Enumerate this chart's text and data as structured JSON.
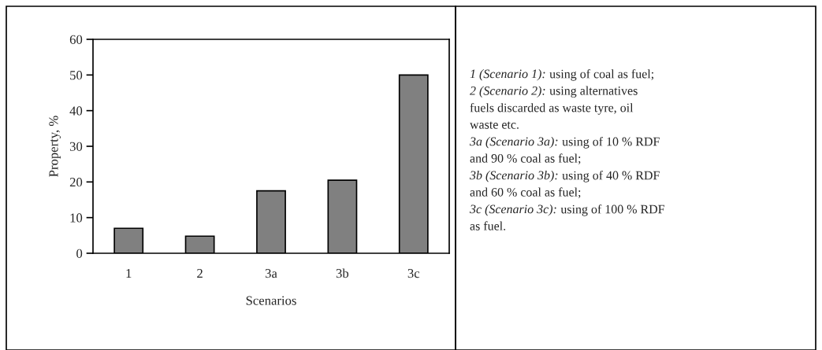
{
  "chart_data": {
    "type": "bar",
    "xlabel": "Scenarios",
    "ylabel": "Property, %",
    "categories": [
      "1",
      "2",
      "3a",
      "3b",
      "3c"
    ],
    "values": [
      7,
      4.8,
      17.5,
      20.5,
      50
    ],
    "color": "#808080",
    "ylim": [
      0,
      60
    ],
    "yticks": [
      0,
      10,
      20,
      30,
      40,
      50,
      60
    ],
    "grid": false,
    "annotations": [
      "1 (Scenario 1): using of coal as fuel;",
      "2 (Scenario 2): using alternatives\nfuels discarded as waste tyre, oil\nwaste etc.",
      "3a (Scenario 3a): using of 10 % RDF\nand 90 % coal as fuel;",
      "3b (Scenario 3b): using of 40 % RDF\nand 60 % coal as fuel;",
      "3c (Scenario 3c): using of 100 % RDF\nas fuel."
    ]
  }
}
